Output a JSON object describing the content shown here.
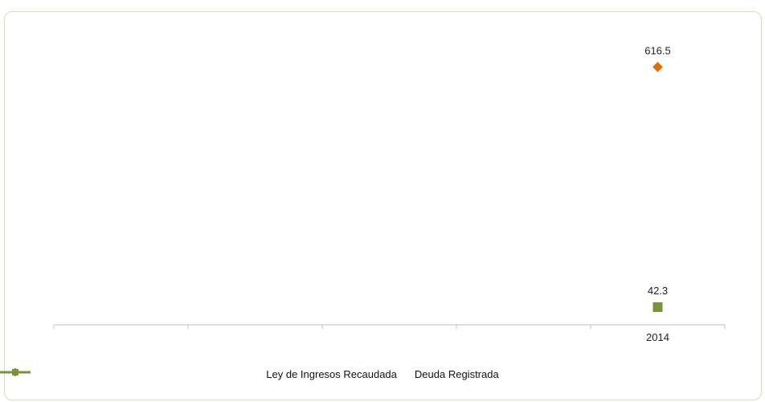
{
  "chart_data": {
    "type": "line",
    "title": "",
    "xlabel": "",
    "ylabel": "",
    "categories": [
      "",
      "",
      "",
      "",
      "2014"
    ],
    "ylim": [
      0,
      700
    ],
    "series": [
      {
        "name": "Ley de Ingresos Recaudada",
        "color": "#e26b0a",
        "marker": "diamond",
        "values": [
          null,
          null,
          null,
          null,
          616.5
        ],
        "labels": [
          "",
          "",
          "",
          "",
          "616.5"
        ]
      },
      {
        "name": "Deuda Registrada",
        "color": "#77933c",
        "marker": "square",
        "values": [
          null,
          null,
          null,
          null,
          42.3
        ],
        "labels": [
          "",
          "",
          "",
          "",
          "42.3"
        ]
      }
    ],
    "grid": false,
    "legend_position": "bottom"
  }
}
